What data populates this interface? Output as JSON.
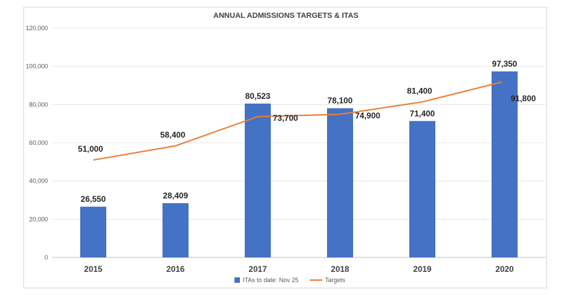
{
  "chart_data": {
    "type": "bar",
    "title": "ANNUAL ADMISSIONS TARGETS & ITAS",
    "categories": [
      "2015",
      "2016",
      "2017",
      "2018",
      "2019",
      "2020"
    ],
    "y_ticks": [
      "0",
      "20,000",
      "40,000",
      "60,000",
      "80,000",
      "100,000",
      "120,000"
    ],
    "ylim": [
      0,
      120000
    ],
    "grid": true,
    "legend_position": "bottom",
    "series": [
      {
        "name": "ITAs to date: Nov 25",
        "type": "bar",
        "color": "#4472c4",
        "values": [
          26550,
          28409,
          80523,
          78100,
          71400,
          97350
        ],
        "labels": [
          "26,550",
          "28,409",
          "80,523",
          "78,100",
          "71,400",
          "97,350"
        ]
      },
      {
        "name": "Targets",
        "type": "line",
        "color": "#ed7d31",
        "values": [
          51000,
          58400,
          73700,
          74900,
          81400,
          91800
        ],
        "labels": [
          "51,000",
          "58,400",
          "73,700",
          "74,900",
          "81,400",
          "91,800"
        ]
      }
    ]
  }
}
